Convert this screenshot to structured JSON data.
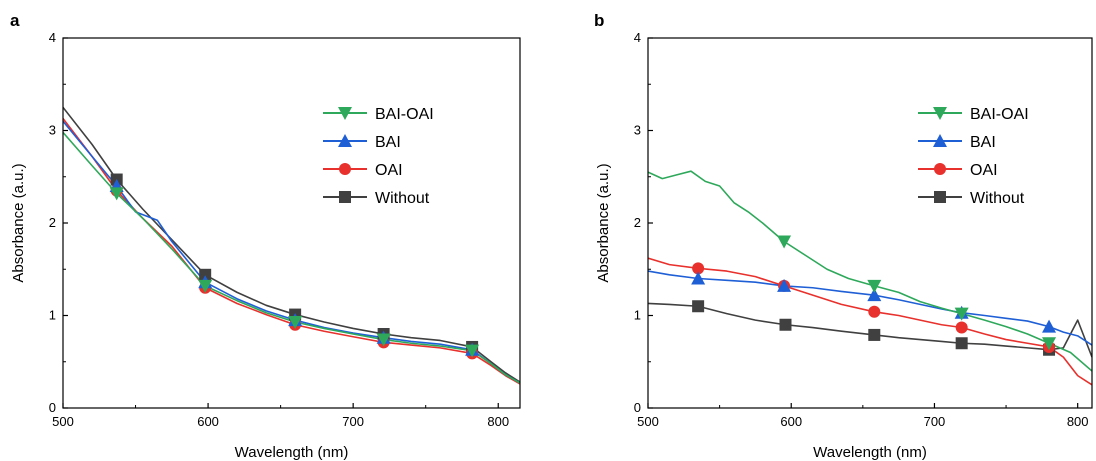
{
  "colors": {
    "BAI-OAI": "#2ea85a",
    "BAI": "#1f5fd6",
    "OAI": "#e8302c",
    "Without": "#404040"
  },
  "chart_data": [
    {
      "type": "line",
      "panel": "a",
      "xlabel": "Wavelength (nm)",
      "ylabel": "Absorbance (a.u.)",
      "xlim": [
        500,
        815
      ],
      "ylim": [
        0,
        4
      ],
      "xticks": [
        500,
        600,
        700,
        800
      ],
      "yticks": [
        0,
        1,
        2,
        3,
        4
      ],
      "legend_position": "top-right",
      "series": [
        {
          "name": "BAI-OAI",
          "marker": "triangle-down",
          "x": [
            500,
            520,
            537,
            555,
            575,
            598,
            620,
            640,
            660,
            680,
            700,
            721,
            740,
            760,
            782,
            795,
            805,
            815
          ],
          "y": [
            2.98,
            2.62,
            2.32,
            2.05,
            1.72,
            1.32,
            1.16,
            1.03,
            0.93,
            0.86,
            0.8,
            0.74,
            0.7,
            0.67,
            0.62,
            0.48,
            0.36,
            0.27
          ],
          "markers_x": [
            537,
            598,
            660,
            721,
            782
          ]
        },
        {
          "name": "BAI",
          "marker": "triangle-up",
          "x": [
            500,
            520,
            537,
            550,
            565,
            575,
            598,
            620,
            640,
            660,
            680,
            700,
            721,
            740,
            760,
            782,
            795,
            805,
            815
          ],
          "y": [
            3.1,
            2.72,
            2.4,
            2.12,
            2.03,
            1.8,
            1.36,
            1.18,
            1.05,
            0.95,
            0.87,
            0.81,
            0.76,
            0.72,
            0.69,
            0.63,
            0.48,
            0.36,
            0.27
          ],
          "markers_x": [
            537,
            598,
            660,
            721,
            782
          ]
        },
        {
          "name": "OAI",
          "marker": "circle",
          "x": [
            500,
            520,
            537,
            555,
            575,
            598,
            620,
            640,
            660,
            680,
            700,
            721,
            740,
            760,
            782,
            795,
            805,
            815
          ],
          "y": [
            3.13,
            2.72,
            2.35,
            2.05,
            1.75,
            1.3,
            1.13,
            1.01,
            0.9,
            0.83,
            0.77,
            0.71,
            0.68,
            0.65,
            0.59,
            0.46,
            0.35,
            0.26
          ],
          "markers_x": [
            537,
            598,
            660,
            721,
            782
          ]
        },
        {
          "name": "Without",
          "marker": "square",
          "x": [
            500,
            520,
            537,
            555,
            575,
            598,
            620,
            640,
            660,
            680,
            700,
            721,
            740,
            760,
            782,
            795,
            805,
            815
          ],
          "y": [
            3.25,
            2.85,
            2.47,
            2.15,
            1.82,
            1.44,
            1.25,
            1.11,
            1.01,
            0.93,
            0.86,
            0.8,
            0.76,
            0.73,
            0.66,
            0.5,
            0.38,
            0.28
          ],
          "markers_x": [
            537,
            598,
            660,
            721,
            782
          ]
        }
      ]
    },
    {
      "type": "line",
      "panel": "b",
      "xlabel": "Wavelength (nm)",
      "ylabel": "Absorbance (a.u.)",
      "xlim": [
        500,
        810
      ],
      "ylim": [
        0,
        4
      ],
      "xticks": [
        500,
        600,
        700,
        800
      ],
      "yticks": [
        0,
        1,
        2,
        3,
        4
      ],
      "legend_position": "top-right",
      "series": [
        {
          "name": "BAI-OAI",
          "marker": "triangle-down",
          "x": [
            500,
            510,
            520,
            530,
            540,
            550,
            560,
            570,
            580,
            595,
            610,
            625,
            640,
            658,
            675,
            690,
            705,
            719,
            735,
            750,
            765,
            780,
            795,
            810
          ],
          "y": [
            2.55,
            2.48,
            2.52,
            2.56,
            2.45,
            2.4,
            2.22,
            2.12,
            2.0,
            1.8,
            1.65,
            1.5,
            1.4,
            1.32,
            1.25,
            1.15,
            1.08,
            1.02,
            0.95,
            0.88,
            0.8,
            0.7,
            0.6,
            0.4
          ],
          "markers_x": [
            595,
            658,
            719,
            780
          ]
        },
        {
          "name": "BAI",
          "marker": "triangle-up",
          "x": [
            500,
            515,
            535,
            555,
            575,
            595,
            615,
            635,
            658,
            675,
            690,
            705,
            719,
            735,
            750,
            765,
            780,
            790,
            800,
            810
          ],
          "y": [
            1.48,
            1.44,
            1.4,
            1.38,
            1.36,
            1.32,
            1.3,
            1.26,
            1.22,
            1.17,
            1.12,
            1.07,
            1.03,
            1.0,
            0.97,
            0.94,
            0.88,
            0.82,
            0.78,
            0.68
          ],
          "markers_x": [
            535,
            595,
            658,
            719,
            780
          ]
        },
        {
          "name": "OAI",
          "marker": "circle",
          "x": [
            500,
            515,
            535,
            555,
            575,
            595,
            615,
            635,
            658,
            675,
            690,
            705,
            719,
            735,
            750,
            765,
            780,
            790,
            800,
            810
          ],
          "y": [
            1.62,
            1.55,
            1.51,
            1.48,
            1.42,
            1.32,
            1.22,
            1.12,
            1.04,
            1.0,
            0.95,
            0.9,
            0.87,
            0.8,
            0.74,
            0.7,
            0.66,
            0.55,
            0.35,
            0.25
          ],
          "markers_x": [
            535,
            595,
            658,
            719,
            780
          ]
        },
        {
          "name": "Without",
          "marker": "square",
          "x": [
            500,
            515,
            535,
            555,
            575,
            596,
            615,
            635,
            658,
            675,
            690,
            705,
            719,
            735,
            750,
            765,
            780,
            790,
            800,
            810
          ],
          "y": [
            1.13,
            1.12,
            1.1,
            1.02,
            0.95,
            0.9,
            0.87,
            0.83,
            0.79,
            0.76,
            0.74,
            0.72,
            0.7,
            0.69,
            0.67,
            0.65,
            0.63,
            0.65,
            0.95,
            0.55
          ],
          "markers_x": [
            535,
            596,
            658,
            719,
            780
          ]
        }
      ]
    }
  ]
}
